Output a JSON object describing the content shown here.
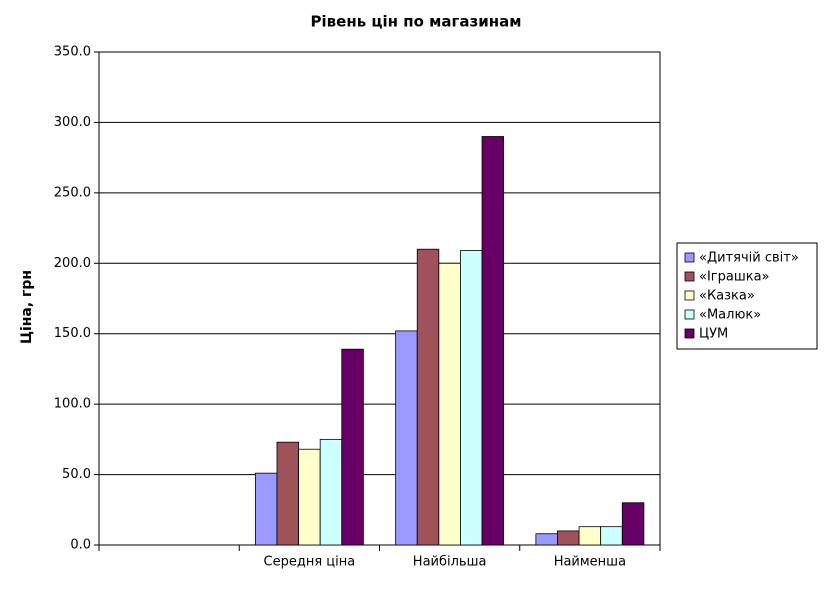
{
  "chart_data": {
    "type": "bar",
    "title": "Рівень цін по магазинам",
    "y_label": "Ціна, грн",
    "categories": [
      null,
      "Середня ціна",
      "Найбільша",
      "Найменша"
    ],
    "series": [
      {
        "name": "«Дитячій світ»",
        "color": "#9999ff",
        "values": [
          null,
          51,
          152,
          8
        ]
      },
      {
        "name": "«Іграшка»",
        "color": "#a0525a",
        "values": [
          null,
          73,
          210,
          10
        ]
      },
      {
        "name": "«Казка»",
        "color": "#ffffcc",
        "values": [
          null,
          68,
          200,
          13
        ]
      },
      {
        "name": "«Малюк»",
        "color": "#ccffff",
        "values": [
          null,
          75,
          209,
          13
        ]
      },
      {
        "name": "ЦУМ",
        "color": "#660066",
        "values": [
          null,
          139,
          290,
          30
        ]
      }
    ],
    "ylim": [
      0,
      350
    ],
    "yticks": [
      {
        "value": 0,
        "label": "0.0"
      },
      {
        "value": 50,
        "label": "50.0"
      },
      {
        "value": 100,
        "label": "100.0"
      },
      {
        "value": 150,
        "label": "150.0"
      },
      {
        "value": 200,
        "label": "200.0"
      },
      {
        "value": 250,
        "label": "250.0"
      },
      {
        "value": 300,
        "label": "300.0"
      },
      {
        "value": 350,
        "label": "350.0"
      }
    ],
    "grid": true,
    "legend": "right"
  }
}
